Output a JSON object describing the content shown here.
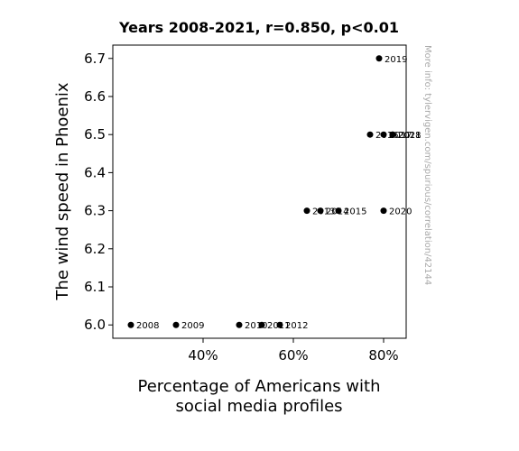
{
  "chart_data": {
    "type": "scatter",
    "title": "Years 2008-2021, r=0.850, p<0.01",
    "xlabel_lines": [
      "Percentage of Americans with",
      "social media profiles"
    ],
    "ylabel": "The wind speed in Phoenix",
    "side_note": "More info: tylervigen.com/spurious/correlation/42144",
    "xlim": [
      0.2,
      0.85
    ],
    "ylim": [
      5.965,
      6.735
    ],
    "x_ticks": [
      {
        "value": 0.4,
        "label": "40%"
      },
      {
        "value": 0.6,
        "label": "60%"
      },
      {
        "value": 0.8,
        "label": "80%"
      }
    ],
    "y_ticks": [
      {
        "value": 6.0,
        "label": "6.0"
      },
      {
        "value": 6.1,
        "label": "6.1"
      },
      {
        "value": 6.2,
        "label": "6.2"
      },
      {
        "value": 6.3,
        "label": "6.3"
      },
      {
        "value": 6.4,
        "label": "6.4"
      },
      {
        "value": 6.5,
        "label": "6.5"
      },
      {
        "value": 6.6,
        "label": "6.6"
      },
      {
        "value": 6.7,
        "label": "6.7"
      }
    ],
    "grid": false,
    "point_color": "#000000",
    "points": [
      {
        "label": "2008",
        "x": 0.24,
        "y": 6.0
      },
      {
        "label": "2009",
        "x": 0.34,
        "y": 6.0
      },
      {
        "label": "2010",
        "x": 0.48,
        "y": 6.0
      },
      {
        "label": "2011",
        "x": 0.53,
        "y": 6.0
      },
      {
        "label": "2012",
        "x": 0.57,
        "y": 6.0
      },
      {
        "label": "2013",
        "x": 0.63,
        "y": 6.3
      },
      {
        "label": "2014",
        "x": 0.66,
        "y": 6.3
      },
      {
        "label": "2015",
        "x": 0.7,
        "y": 6.3
      },
      {
        "label": "2016",
        "x": 0.77,
        "y": 6.5
      },
      {
        "label": "2017",
        "x": 0.8,
        "y": 6.5
      },
      {
        "label": "2018",
        "x": 0.82,
        "y": 6.5
      },
      {
        "label": "2019",
        "x": 0.79,
        "y": 6.7
      },
      {
        "label": "2020",
        "x": 0.8,
        "y": 6.3
      },
      {
        "label": "2021",
        "x": 0.82,
        "y": 6.5
      }
    ]
  }
}
